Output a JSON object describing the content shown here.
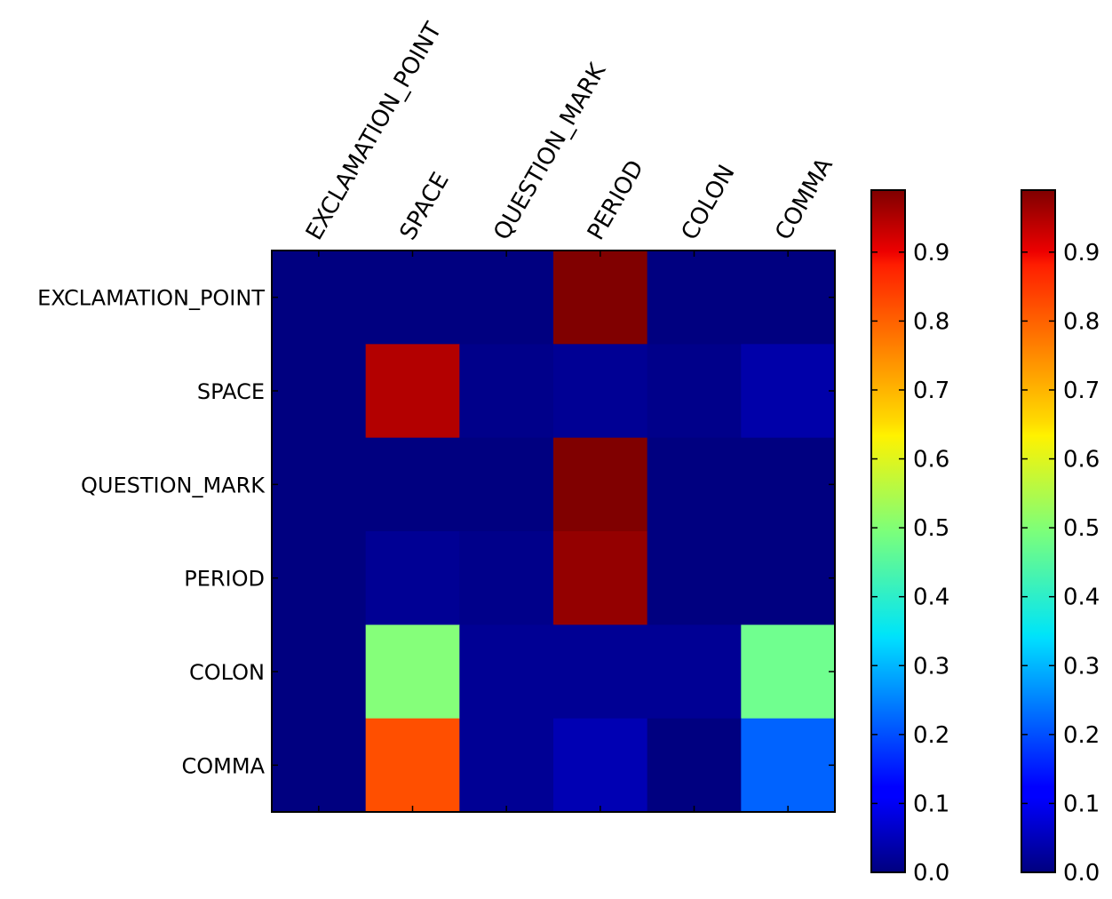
{
  "chart_data": {
    "type": "heatmap",
    "title": "",
    "xlabel": "",
    "ylabel": "",
    "x_labels": [
      "EXCLAMATION_POINT",
      "SPACE",
      "QUESTION_MARK",
      "PERIOD",
      "COLON",
      "COMMA"
    ],
    "y_labels": [
      "EXCLAMATION_POINT",
      "SPACE",
      "QUESTION_MARK",
      "PERIOD",
      "COLON",
      "COMMA"
    ],
    "values": [
      [
        0.0,
        0.0,
        0.0,
        1.0,
        0.0,
        0.0
      ],
      [
        0.0,
        0.94,
        0.01,
        0.02,
        0.01,
        0.04
      ],
      [
        0.0,
        0.0,
        0.0,
        0.99,
        0.0,
        0.0
      ],
      [
        0.0,
        0.02,
        0.01,
        0.97,
        0.0,
        0.0
      ],
      [
        0.0,
        0.5,
        0.02,
        0.02,
        0.02,
        0.48
      ],
      [
        0.0,
        0.79,
        0.02,
        0.05,
        0.0,
        0.22
      ]
    ],
    "colormap": "jet",
    "vmin": 0.0,
    "vmax": 0.99,
    "colorbars": [
      {
        "ticks": [
          "0.0",
          "0.1",
          "0.2",
          "0.3",
          "0.4",
          "0.5",
          "0.6",
          "0.7",
          "0.8",
          "0.9"
        ]
      },
      {
        "ticks": [
          "0.0",
          "0.1",
          "0.2",
          "0.3",
          "0.4",
          "0.5",
          "0.6",
          "0.7",
          "0.8",
          "0.9"
        ]
      }
    ],
    "grid": false,
    "legend": "none"
  }
}
